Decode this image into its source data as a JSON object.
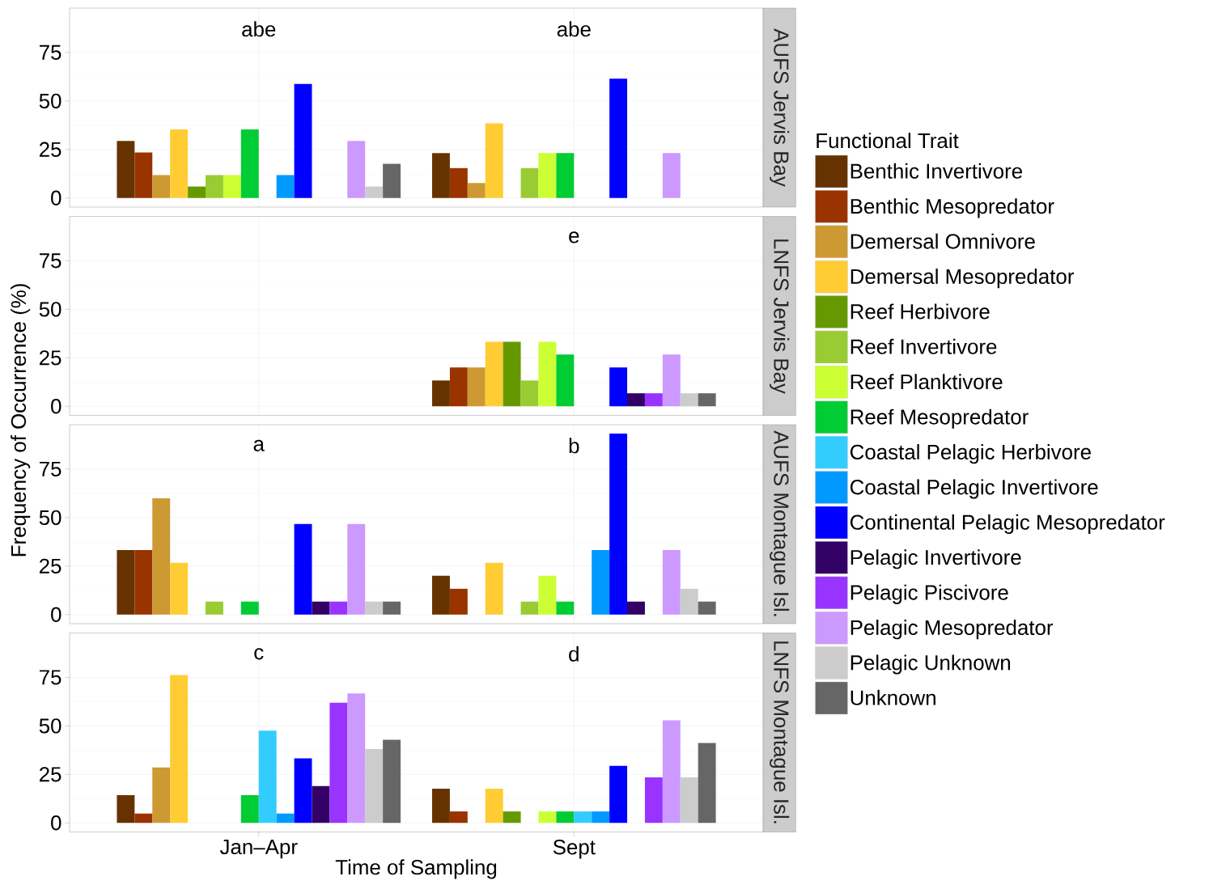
{
  "chart_data": [
    {
      "type": "bar",
      "title": "AUFS Jervis Bay",
      "categories": [
        null,
        null
      ],
      "ylim": [
        -4.7,
        97.9
      ],
      "yticks": [
        0,
        25,
        50,
        75
      ],
      "grid": true,
      "tick_labels": "y",
      "legend": "right",
      "legend_title": "Functional Trait",
      "annotations": [
        "abe",
        "abe"
      ],
      "series": [
        {
          "name": "Benthic Invertivore",
          "color": "#663300",
          "values": [
            29.4,
            23.1
          ]
        },
        {
          "name": "Benthic Mesopredator",
          "color": "#993300",
          "values": [
            23.5,
            15.4
          ]
        },
        {
          "name": "Demersal Omnivore",
          "color": "#cc9933",
          "values": [
            11.8,
            7.7
          ]
        },
        {
          "name": "Demersal Mesopredator",
          "color": "#ffcc33",
          "values": [
            35.3,
            38.5
          ]
        },
        {
          "name": "Reef Herbivore",
          "color": "#669900",
          "values": [
            5.9,
            0
          ]
        },
        {
          "name": "Reef Invertivore",
          "color": "#99cc33",
          "values": [
            11.8,
            15.4
          ]
        },
        {
          "name": "Reef Planktivore",
          "color": "#ccff33",
          "values": [
            11.8,
            23.1
          ]
        },
        {
          "name": "Reef Mesopredator",
          "color": "#00cc33",
          "values": [
            35.3,
            23.1
          ]
        },
        {
          "name": "Coastal Pelagic Herbivore",
          "color": "#33ccff",
          "values": [
            0,
            0
          ]
        },
        {
          "name": "Coastal Pelagic Invertivore",
          "color": "#0099ff",
          "values": [
            11.8,
            0
          ]
        },
        {
          "name": "Continental Pelagic Mesopredator",
          "color": "#0000ff",
          "values": [
            58.8,
            61.5
          ]
        },
        {
          "name": "Pelagic Invertivore",
          "color": "#330066",
          "values": [
            0,
            0
          ]
        },
        {
          "name": "Pelagic Piscivore",
          "color": "#9933ff",
          "values": [
            0,
            0
          ]
        },
        {
          "name": "Pelagic Mesopredator",
          "color": "#cc99ff",
          "values": [
            29.4,
            23.1
          ]
        },
        {
          "name": "Pelagic Unknown",
          "color": "#cccccc",
          "values": [
            5.9,
            0
          ]
        },
        {
          "name": "Unknown",
          "color": "#666666",
          "values": [
            17.6,
            0
          ]
        }
      ]
    },
    {
      "type": "bar",
      "title": "LNFS Jervis Bay",
      "categories": [
        null,
        null
      ],
      "ylim": [
        -4.7,
        97.9
      ],
      "yticks": [
        0,
        25,
        50,
        75
      ],
      "grid": true,
      "tick_labels": "y",
      "ylabel": "Frequency of Occurrence (%)",
      "annotations": [
        "e"
      ],
      "series": [
        {
          "color": "#663300",
          "values": [
            null,
            13.3
          ]
        },
        {
          "color": "#993300",
          "values": [
            null,
            20
          ]
        },
        {
          "color": "#cc9933",
          "values": [
            null,
            20
          ]
        },
        {
          "color": "#ffcc33",
          "values": [
            null,
            33.3
          ]
        },
        {
          "color": "#669900",
          "values": [
            null,
            33.3
          ]
        },
        {
          "color": "#99cc33",
          "values": [
            null,
            13.3
          ]
        },
        {
          "color": "#ccff33",
          "values": [
            null,
            33.3
          ]
        },
        {
          "color": "#00cc33",
          "values": [
            null,
            26.7
          ]
        },
        {
          "color": "#33ccff",
          "values": [
            null,
            0
          ]
        },
        {
          "color": "#0099ff",
          "values": [
            null,
            0
          ]
        },
        {
          "color": "#0000ff",
          "values": [
            null,
            20
          ]
        },
        {
          "color": "#330066",
          "values": [
            null,
            6.7
          ]
        },
        {
          "color": "#9933ff",
          "values": [
            null,
            6.7
          ]
        },
        {
          "color": "#cc99ff",
          "values": [
            null,
            26.7
          ]
        },
        {
          "color": "#cccccc",
          "values": [
            null,
            6.7
          ]
        },
        {
          "color": "#666666",
          "values": [
            null,
            6.7
          ]
        }
      ]
    },
    {
      "type": "bar",
      "title": "AUFS Montague Isl.",
      "categories": [
        null,
        null
      ],
      "ylim": [
        -4.7,
        97.9
      ],
      "yticks": [
        0,
        25,
        50,
        75
      ],
      "grid": true,
      "tick_labels": "y",
      "annotations": [
        "a",
        "b"
      ],
      "series": [
        {
          "color": "#663300",
          "values": [
            33.3,
            20
          ]
        },
        {
          "color": "#993300",
          "values": [
            33.3,
            13.3
          ]
        },
        {
          "color": "#cc9933",
          "values": [
            60,
            0
          ]
        },
        {
          "color": "#ffcc33",
          "values": [
            26.7,
            26.7
          ]
        },
        {
          "color": "#669900",
          "values": [
            0,
            0
          ]
        },
        {
          "color": "#99cc33",
          "values": [
            6.7,
            6.7
          ]
        },
        {
          "color": "#ccff33",
          "values": [
            0,
            20
          ]
        },
        {
          "color": "#00cc33",
          "values": [
            6.7,
            6.7
          ]
        },
        {
          "color": "#33ccff",
          "values": [
            0,
            0
          ]
        },
        {
          "color": "#0099ff",
          "values": [
            0,
            33.3
          ]
        },
        {
          "color": "#0000ff",
          "values": [
            46.7,
            93.3
          ]
        },
        {
          "color": "#330066",
          "values": [
            6.7,
            6.7
          ]
        },
        {
          "color": "#9933ff",
          "values": [
            6.7,
            0
          ]
        },
        {
          "color": "#cc99ff",
          "values": [
            46.7,
            33.3
          ]
        },
        {
          "color": "#cccccc",
          "values": [
            6.7,
            13.3
          ]
        },
        {
          "color": "#666666",
          "values": [
            6.7,
            6.7
          ]
        }
      ]
    },
    {
      "type": "bar",
      "title": "LNFS Montague Isl.",
      "categories": [
        "Jan–Apr",
        "Sept"
      ],
      "ylim": [
        -4.7,
        97.9
      ],
      "yticks": [
        0,
        25,
        50,
        75
      ],
      "grid": true,
      "xlabel": "Time of Sampling",
      "annotations": [
        "c",
        "d"
      ],
      "series": [
        {
          "color": "#663300",
          "values": [
            14.3,
            17.6
          ]
        },
        {
          "color": "#993300",
          "values": [
            4.8,
            5.9
          ]
        },
        {
          "color": "#cc9933",
          "values": [
            28.6,
            0
          ]
        },
        {
          "color": "#ffcc33",
          "values": [
            76.2,
            17.6
          ]
        },
        {
          "color": "#669900",
          "values": [
            0,
            5.9
          ]
        },
        {
          "color": "#99cc33",
          "values": [
            0,
            0
          ]
        },
        {
          "color": "#ccff33",
          "values": [
            0,
            5.9
          ]
        },
        {
          "color": "#00cc33",
          "values": [
            14.3,
            5.9
          ]
        },
        {
          "color": "#33ccff",
          "values": [
            47.6,
            5.9
          ]
        },
        {
          "color": "#0099ff",
          "values": [
            4.8,
            5.9
          ]
        },
        {
          "color": "#0000ff",
          "values": [
            33.3,
            29.4
          ]
        },
        {
          "color": "#330066",
          "values": [
            19.0,
            0
          ]
        },
        {
          "color": "#9933ff",
          "values": [
            61.9,
            23.5
          ]
        },
        {
          "color": "#cc99ff",
          "values": [
            66.7,
            52.9
          ]
        },
        {
          "color": "#cccccc",
          "values": [
            38.1,
            23.5
          ]
        },
        {
          "color": "#666666",
          "values": [
            42.9,
            41.2
          ]
        }
      ]
    }
  ]
}
